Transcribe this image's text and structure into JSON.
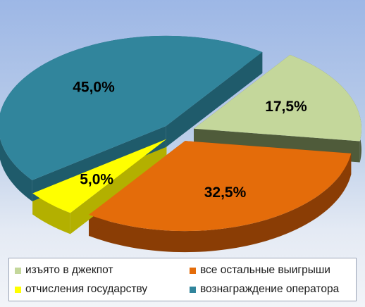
{
  "chart_data": {
    "type": "pie",
    "style": "3d-exploded",
    "slices": [
      {
        "label": "изъято в джекпот",
        "value": 17.5,
        "value_label": "17,5%",
        "color": "#c4d79b",
        "side": "#4f5b3a"
      },
      {
        "label": "все остальные выигрыши",
        "value": 32.5,
        "value_label": "32,5%",
        "color": "#e46c0a",
        "side": "#8a3d05"
      },
      {
        "label": "отчисления государству",
        "value": 5.0,
        "value_label": "5,0%",
        "color": "#ffff00",
        "side": "#b3b000"
      },
      {
        "label": "вознаграждение оператора",
        "value": 45.0,
        "value_label": "45,0%",
        "color": "#31859c",
        "side": "#1f5b6b"
      }
    ],
    "legend_position": "bottom"
  }
}
